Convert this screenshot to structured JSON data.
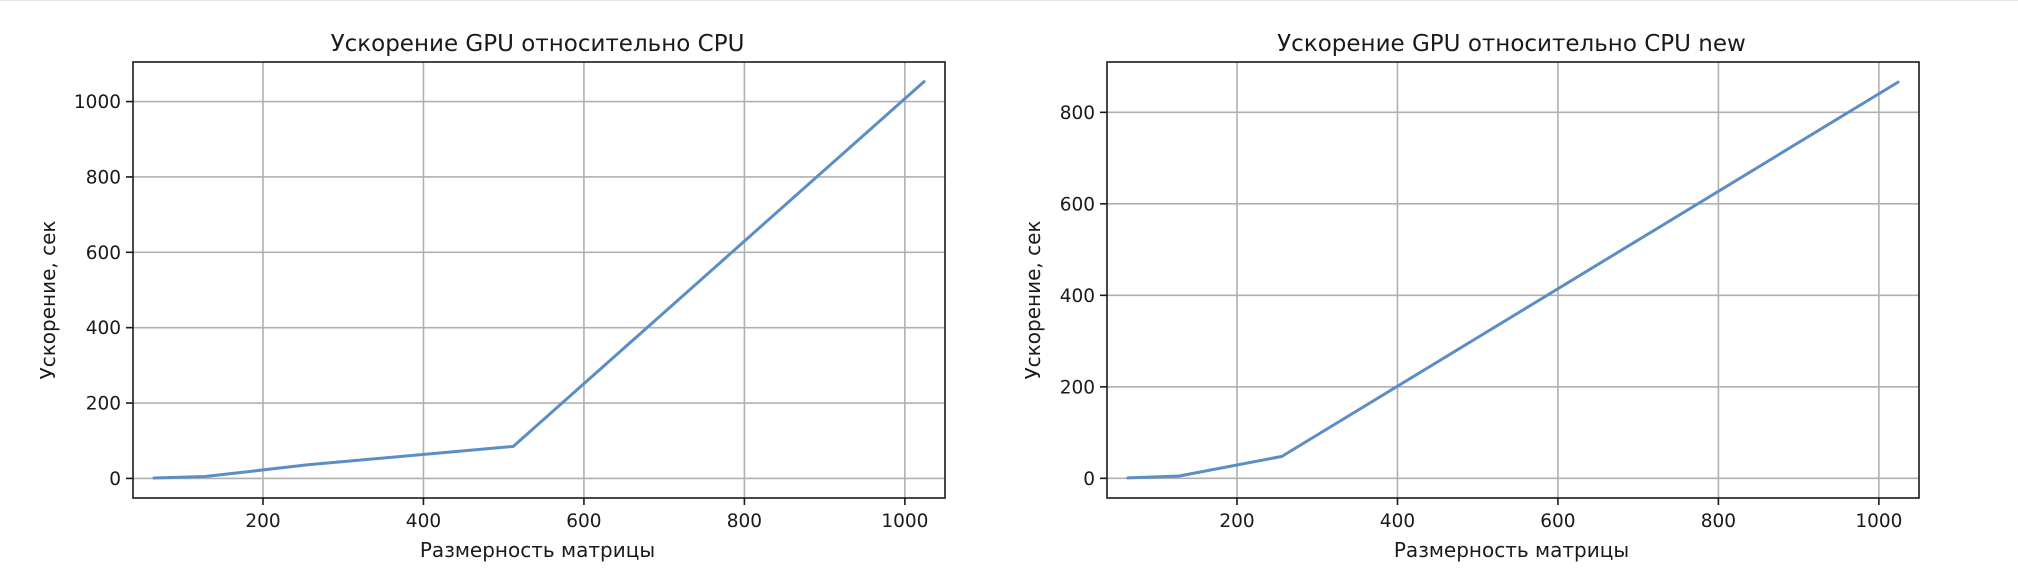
{
  "chart_data": [
    {
      "type": "line",
      "title": "Ускорение GPU относительно CPU",
      "xlabel": "Размерность матрицы",
      "ylabel": "Ускорение, сек",
      "xlim": [
        38,
        1050
      ],
      "ylim": [
        -52,
        1105
      ],
      "xticks": [
        200,
        400,
        600,
        800,
        1000
      ],
      "yticks": [
        0,
        200,
        400,
        600,
        800,
        1000
      ],
      "grid": true,
      "series": [
        {
          "x": [
            64,
            128,
            256,
            512,
            1024
          ],
          "y": [
            1,
            5,
            36,
            85,
            1053
          ],
          "color": "#5b8ec4"
        }
      ]
    },
    {
      "type": "line",
      "title": "Ускорение GPU относительно CPU new",
      "xlabel": "Размерность матрицы",
      "ylabel": "Ускорение, сек",
      "xlim": [
        38,
        1050
      ],
      "ylim": [
        -43,
        910
      ],
      "xticks": [
        200,
        400,
        600,
        800,
        1000
      ],
      "yticks": [
        0,
        200,
        400,
        600,
        800
      ],
      "grid": true,
      "series": [
        {
          "x": [
            64,
            128,
            256,
            1024
          ],
          "y": [
            1,
            5,
            48,
            866
          ],
          "color": "#5b8ec4"
        }
      ]
    }
  ]
}
